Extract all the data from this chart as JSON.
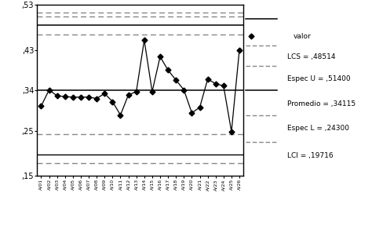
{
  "title": "",
  "ylabel": "",
  "xlabel": "",
  "ylim": [
    0.15,
    0.53
  ],
  "yticks": [
    0.15,
    0.25,
    0.34,
    0.43,
    0.53
  ],
  "ytick_labels": [
    ",15",
    ",25",
    ",34",
    ",43",
    ",53"
  ],
  "lcs": 0.48514,
  "espec_u": 0.514,
  "promedio": 0.34115,
  "espec_l": 0.243,
  "lci": 0.19716,
  "extra_dash_1": 0.505,
  "extra_dash_2": 0.465,
  "extra_dash_3": 0.178,
  "line_color": "#000000",
  "dashed_color": "#888888",
  "values": [
    0.305,
    0.341,
    0.328,
    0.326,
    0.325,
    0.325,
    0.325,
    0.322,
    0.333,
    0.315,
    0.285,
    0.33,
    0.337,
    0.452,
    0.337,
    0.415,
    0.385,
    0.363,
    0.341,
    0.29,
    0.302,
    0.365,
    0.355,
    0.35,
    0.248,
    0.43
  ],
  "x_labels": [
    "A/01",
    "A/02",
    "A/03",
    "A/04",
    "A/05",
    "A/06",
    "A/07",
    "A/08",
    "A/09",
    "A/10",
    "A/11",
    "A/12",
    "A/13",
    "A/14",
    "A/15",
    "A/16",
    "A/17",
    "A/18",
    "A/19",
    "A/20",
    "A/21",
    "A/22",
    "A/23",
    "A/24",
    "A/25",
    "A/26"
  ],
  "background_color": "#ffffff"
}
